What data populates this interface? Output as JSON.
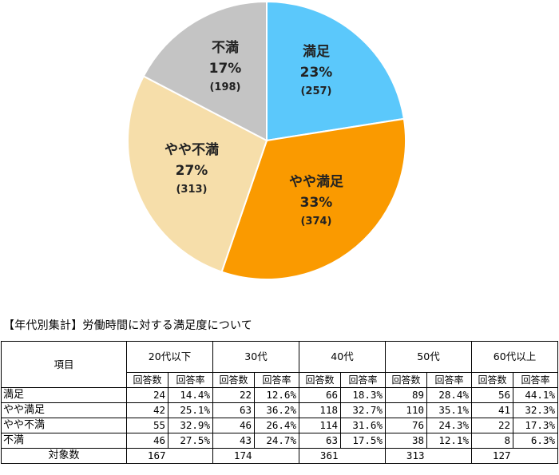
{
  "chart_data": {
    "type": "pie",
    "slices": [
      {
        "label": "満足",
        "percent": "23%",
        "count": "(257)",
        "value": 257,
        "color": "#5bc8fb"
      },
      {
        "label": "やや満足",
        "percent": "33%",
        "count": "(374)",
        "value": 374,
        "color": "#fa9a00"
      },
      {
        "label": "やや不満",
        "percent": "27%",
        "count": "(313)",
        "value": 313,
        "color": "#f6deaa"
      },
      {
        "label": "不満",
        "percent": "17%",
        "count": "(198)",
        "value": 198,
        "color": "#c4c4c4"
      }
    ]
  },
  "section_title": "【年代別集計】労働時間に対する満足度について",
  "table": {
    "item_header": "項目",
    "age_groups": [
      "20代以下",
      "30代",
      "40代",
      "50代",
      "60代以上"
    ],
    "sub_headers": [
      "回答数",
      "回答率"
    ],
    "rows": [
      {
        "label": "満足",
        "cells": [
          "24",
          "14.4%",
          "22",
          "12.6%",
          "66",
          "18.3%",
          "89",
          "28.4%",
          "56",
          "44.1%"
        ]
      },
      {
        "label": "やや満足",
        "cells": [
          "42",
          "25.1%",
          "63",
          "36.2%",
          "118",
          "32.7%",
          "110",
          "35.1%",
          "41",
          "32.3%"
        ]
      },
      {
        "label": "やや不満",
        "cells": [
          "55",
          "32.9%",
          "46",
          "26.4%",
          "114",
          "31.6%",
          "76",
          "24.3%",
          "22",
          "17.3%"
        ]
      },
      {
        "label": "不満",
        "cells": [
          "46",
          "27.5%",
          "43",
          "24.7%",
          "63",
          "17.5%",
          "38",
          "12.1%",
          "8",
          "6.3%"
        ]
      }
    ],
    "total_label": "対象数",
    "totals": [
      "167",
      "174",
      "361",
      "313",
      "127"
    ]
  }
}
